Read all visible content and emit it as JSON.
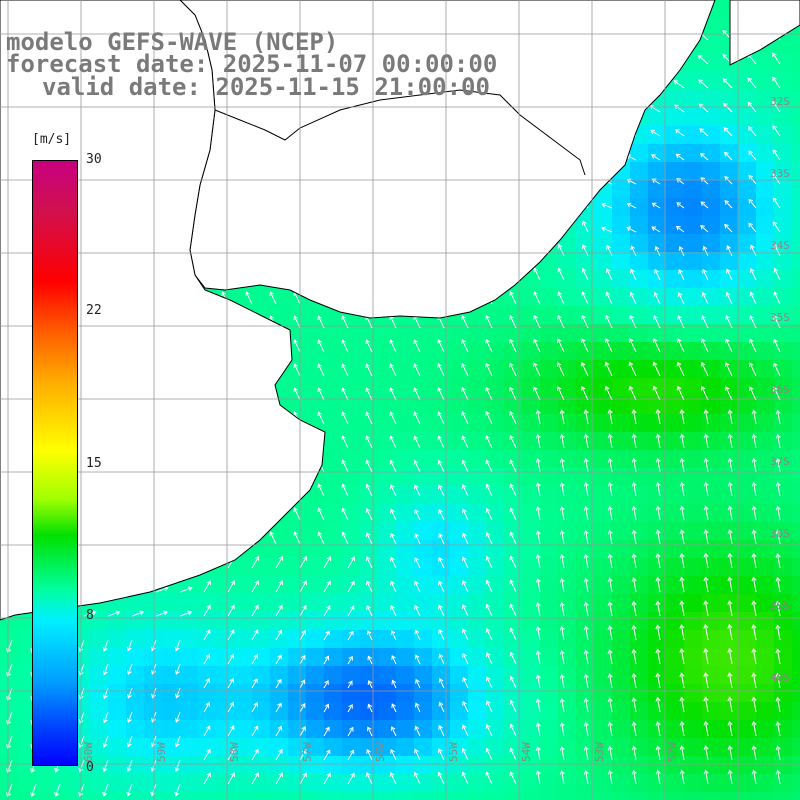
{
  "title": {
    "model": "modelo GEFS-WAVE (NCEP)",
    "forecast": "forecast date: 2025-11-07 00:00:00",
    "valid": "valid date: 2025-11-15 21:00:00"
  },
  "legend": {
    "unit": "[m/s]",
    "ticks": [
      "30",
      "22",
      "15",
      "8",
      "0"
    ]
  },
  "colors": {
    "land": "#ffffff",
    "grid": "#999999",
    "coast": "#000000",
    "arrow": "#ffffff",
    "title": "#7a7a7a"
  },
  "lat_labels": [
    "32S",
    "33S",
    "34S",
    "35S",
    "36S",
    "37S",
    "38S",
    "39S",
    "40S"
  ],
  "lon_labels": [
    "60W",
    "59W",
    "58W",
    "57W",
    "56W",
    "55W",
    "54W",
    "53W",
    "52W"
  ],
  "wind_field": {
    "variable": "wind speed and direction",
    "units": "m/s",
    "range": [
      0,
      30
    ],
    "pattern": "wind from south-east, stronger (≈10-13 m/s) over central and south-east waters, weaker (≈3-6 m/s) near 39S 57W and north-east offshore"
  }
}
